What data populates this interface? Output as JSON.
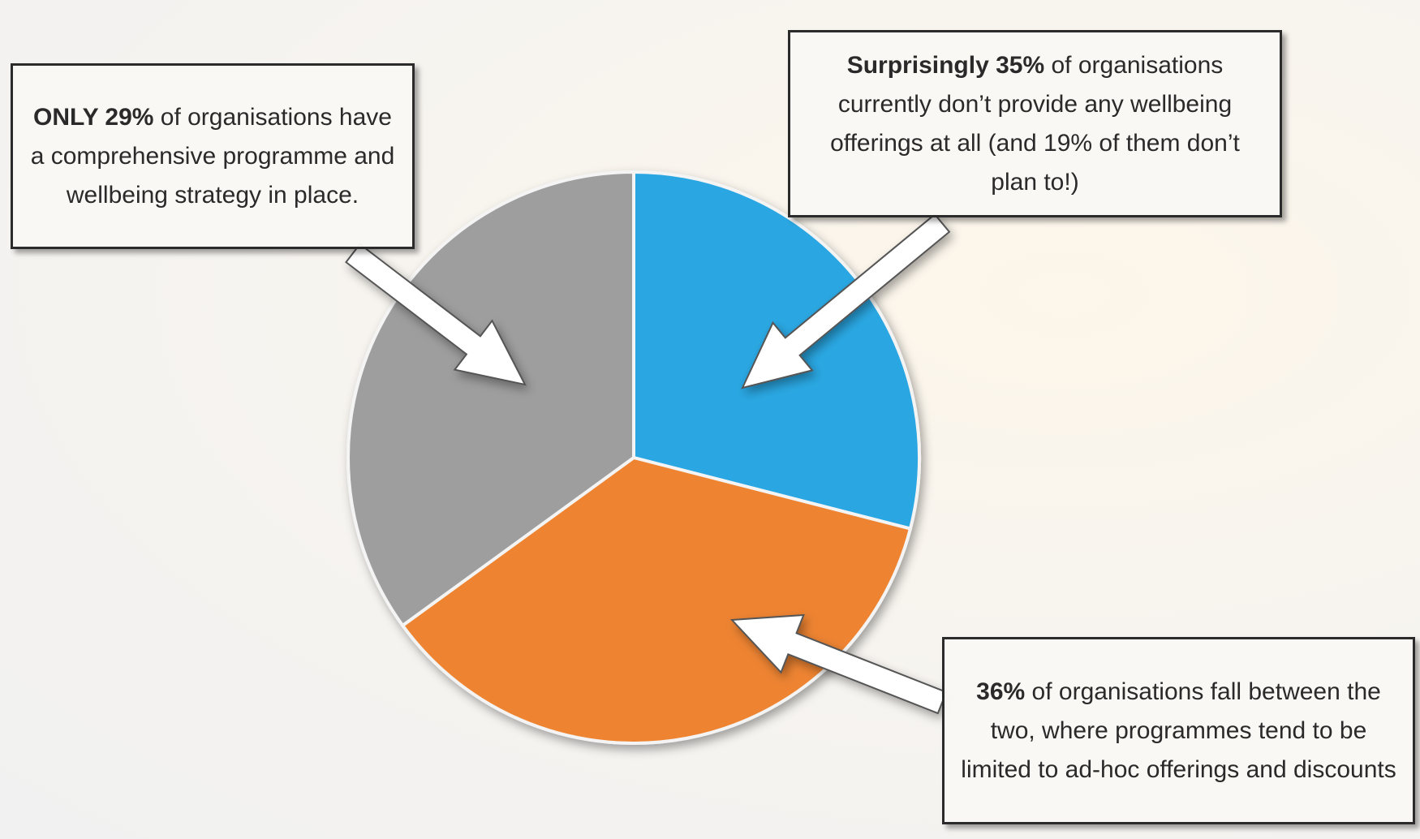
{
  "chart_data": {
    "type": "pie",
    "values": [
      29,
      36,
      35
    ],
    "colors": [
      "#2aa7e2",
      "#ee8430",
      "#9e9e9e"
    ],
    "start_angle": 0,
    "direction": "clockwise",
    "annotations": [
      {
        "bold": "ONLY 29%",
        "text": " of organisations have a comprehensive programme and wellbeing strategy in place."
      },
      {
        "bold": "Surprisingly 35%",
        "text": " of organisations currently don’t provide any wellbeing offerings at all (and 19% of them don’t plan to!)"
      },
      {
        "bold": "36%",
        "text": " of organisations fall between the two, where programmes tend to be limited to ad-hoc offerings and discounts"
      }
    ]
  }
}
